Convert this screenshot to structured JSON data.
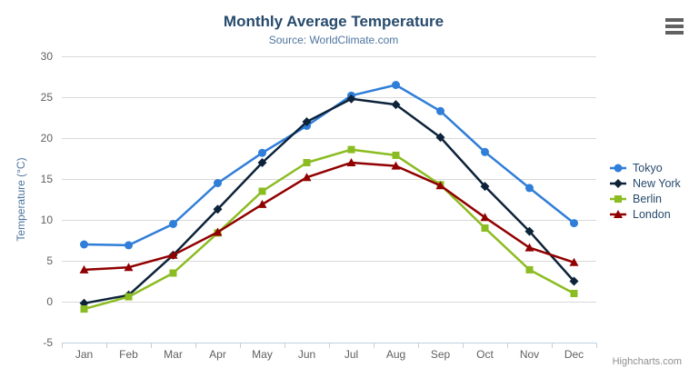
{
  "credits": "Highcharts.com",
  "chart_data": {
    "type": "line",
    "title": "Monthly Average Temperature",
    "subtitle": "Source: WorldClimate.com",
    "categories": [
      "Jan",
      "Feb",
      "Mar",
      "Apr",
      "May",
      "Jun",
      "Jul",
      "Aug",
      "Sep",
      "Oct",
      "Nov",
      "Dec"
    ],
    "xlabel": "",
    "ylabel": "Temperature (°C)",
    "ylim": [
      -5,
      30
    ],
    "ytick_interval": 5,
    "grid": "horizontal-only",
    "legend_position": "right-middle",
    "series": [
      {
        "name": "Tokyo",
        "color": "#2f7ed8",
        "marker": "circle",
        "values": [
          7.0,
          6.9,
          9.5,
          14.5,
          18.2,
          21.5,
          25.2,
          26.5,
          23.3,
          18.3,
          13.9,
          9.6
        ]
      },
      {
        "name": "New York",
        "color": "#0d233a",
        "marker": "diamond",
        "values": [
          -0.2,
          0.8,
          5.7,
          11.3,
          17.0,
          22.0,
          24.8,
          24.1,
          20.1,
          14.1,
          8.6,
          2.5
        ]
      },
      {
        "name": "Berlin",
        "color": "#8bbc21",
        "marker": "square",
        "values": [
          -0.9,
          0.6,
          3.5,
          8.4,
          13.5,
          17.0,
          18.6,
          17.9,
          14.3,
          9.0,
          3.9,
          1.0
        ]
      },
      {
        "name": "London",
        "color": "#910000",
        "marker": "triangle",
        "values": [
          3.9,
          4.2,
          5.7,
          8.5,
          11.9,
          15.2,
          17.0,
          16.6,
          14.2,
          10.3,
          6.6,
          4.8
        ]
      }
    ],
    "colors": {
      "title": "#274b6d",
      "subtitle": "#4d759e",
      "axis_label": "#606060",
      "axis_title": "#4d759e",
      "gridline": "#d8d8d8",
      "axis_line": "#c0d0e0",
      "legend_text": "#274b6d",
      "credits_text": "#909090"
    }
  }
}
